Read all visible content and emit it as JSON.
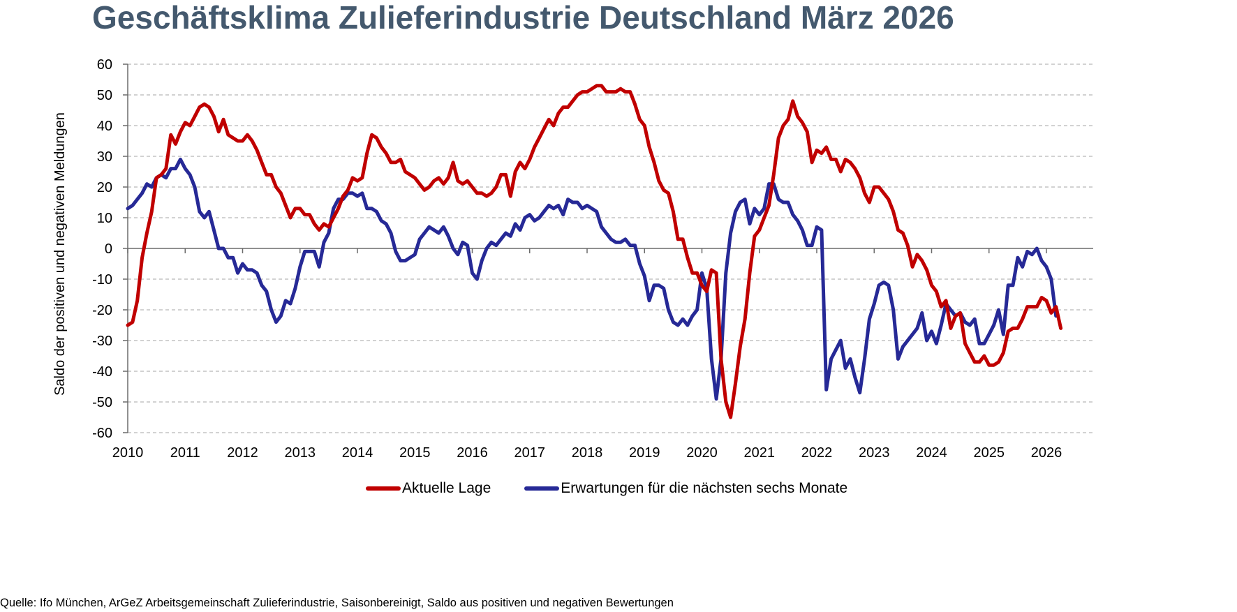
{
  "title": "Geschäftsklima Zulieferindustrie Deutschland März 2026",
  "source": "Quelle: Ifo München, ArGeZ Arbeitsgemeinschaft Zulieferindustrie, Saisonbereinigt, Saldo aus positiven und negativen Bewertungen",
  "colors": {
    "aktuelle_lage": "#c00000",
    "erwartungen": "#262996",
    "title": "#44596e",
    "grid": "#a6a6a6",
    "axis": "#6b6b6b"
  },
  "chart_data": {
    "type": "line",
    "title": "Geschäftsklima Zulieferindustrie Deutschland März 2026",
    "xlabel": "",
    "ylabel": "Saldo der positiven und negativen Meldungen",
    "ylim": [
      -60,
      60
    ],
    "yticks": [
      60,
      50,
      40,
      30,
      20,
      10,
      0,
      -10,
      -20,
      -30,
      -40,
      -50,
      -60
    ],
    "xlim": [
      "2010-01",
      "2026-03"
    ],
    "xticks": [
      "2010",
      "2011",
      "2012",
      "2013",
      "2014",
      "2015",
      "2016",
      "2017",
      "2018",
      "2019",
      "2020",
      "2021",
      "2022",
      "2023",
      "2024",
      "2025",
      "2026"
    ],
    "grid": "horizontal dashed",
    "legend": {
      "position": "bottom",
      "entries": [
        "Aktuelle Lage",
        "Erwartungen für die nächsten sechs Monate"
      ]
    },
    "frequency": "monthly",
    "start": "2010-01",
    "series": [
      {
        "name": "Aktuelle Lage",
        "color": "#c00000",
        "values": [
          -25,
          -24,
          -17,
          -3,
          5,
          12,
          23,
          24,
          26,
          37,
          34,
          38,
          41,
          40,
          43,
          46,
          47,
          46,
          43,
          38,
          42,
          37,
          36,
          35,
          35,
          37,
          35,
          32,
          28,
          24,
          24,
          20,
          18,
          14,
          10,
          13,
          13,
          11,
          11,
          8,
          6,
          8,
          7,
          10,
          13,
          17,
          19,
          23,
          22,
          23,
          31,
          37,
          36,
          33,
          31,
          28,
          28,
          29,
          25,
          24,
          23,
          21,
          19,
          20,
          22,
          23,
          21,
          23,
          28,
          22,
          21,
          22,
          20,
          18,
          18,
          17,
          18,
          20,
          24,
          24,
          17,
          25,
          28,
          26,
          29,
          33,
          36,
          39,
          42,
          40,
          44,
          46,
          46,
          48,
          50,
          51,
          51,
          52,
          53,
          53,
          51,
          51,
          51,
          52,
          51,
          51,
          47,
          42,
          40,
          33,
          28,
          22,
          19,
          18,
          12,
          3,
          3,
          -3,
          -8,
          -8,
          -12,
          -14,
          -7,
          -8,
          -36,
          -50,
          -55,
          -44,
          -32,
          -23,
          -8,
          4,
          6,
          10,
          14,
          24,
          36,
          40,
          42,
          48,
          43,
          41,
          38,
          28,
          32,
          31,
          33,
          29,
          29,
          25,
          29,
          28,
          26,
          23,
          18,
          15,
          20,
          20,
          18,
          16,
          12,
          6,
          5,
          1,
          -6,
          -2,
          -4,
          -7,
          -12,
          -14,
          -19,
          -17,
          -26,
          -22,
          -21,
          -31,
          -34,
          -37,
          -37,
          -35,
          -38,
          -38,
          -37,
          -34,
          -27,
          -26,
          -26,
          -23,
          -19,
          -19,
          -19,
          -16,
          -17,
          -21,
          -19,
          -26
        ]
      },
      {
        "name": "Erwartungen für die nächsten sechs Monate",
        "color": "#262996",
        "values": [
          13,
          14,
          16,
          18,
          21,
          20,
          23,
          24,
          23,
          26,
          26,
          29,
          26,
          24,
          20,
          12,
          10,
          12,
          6,
          0,
          0,
          -3,
          -3,
          -8,
          -5,
          -7,
          -7,
          -8,
          -12,
          -14,
          -20,
          -24,
          -22,
          -17,
          -18,
          -13,
          -6,
          -1,
          -1,
          -1,
          -6,
          2,
          5,
          13,
          16,
          16,
          18,
          18,
          17,
          18,
          13,
          13,
          12,
          9,
          8,
          5,
          -1,
          -4,
          -4,
          -3,
          -2,
          3,
          5,
          7,
          6,
          5,
          7,
          4,
          0,
          -2,
          2,
          1,
          -8,
          -10,
          -4,
          0,
          2,
          1,
          3,
          5,
          4,
          8,
          6,
          10,
          11,
          9,
          10,
          12,
          14,
          13,
          14,
          11,
          16,
          15,
          15,
          13,
          14,
          13,
          12,
          7,
          5,
          3,
          2,
          2,
          3,
          1,
          1,
          -5,
          -9,
          -17,
          -12,
          -12,
          -13,
          -20,
          -24,
          -25,
          -23,
          -25,
          -22,
          -20,
          -8,
          -13,
          -36,
          -49,
          -36,
          -8,
          5,
          12,
          15,
          16,
          8,
          13,
          11,
          13,
          21,
          21,
          16,
          15,
          15,
          11,
          9,
          6,
          1,
          1,
          7,
          6,
          -46,
          -36,
          -33,
          -30,
          -39,
          -36,
          -42,
          -47,
          -36,
          -23,
          -18,
          -12,
          -11,
          -12,
          -20,
          -36,
          -32,
          -30,
          -28,
          -26,
          -21,
          -30,
          -27,
          -31,
          -25,
          -18,
          -20,
          -22,
          -21,
          -24,
          -25,
          -23,
          -31,
          -31,
          -28,
          -25,
          -20,
          -28,
          -12,
          -12,
          -3,
          -6,
          -1,
          -2,
          0,
          -4,
          -6,
          -10,
          -22
        ]
      }
    ]
  },
  "legend": {
    "items": [
      {
        "label": "Aktuelle Lage"
      },
      {
        "label": "Erwartungen für die nächsten sechs Monate"
      }
    ]
  }
}
